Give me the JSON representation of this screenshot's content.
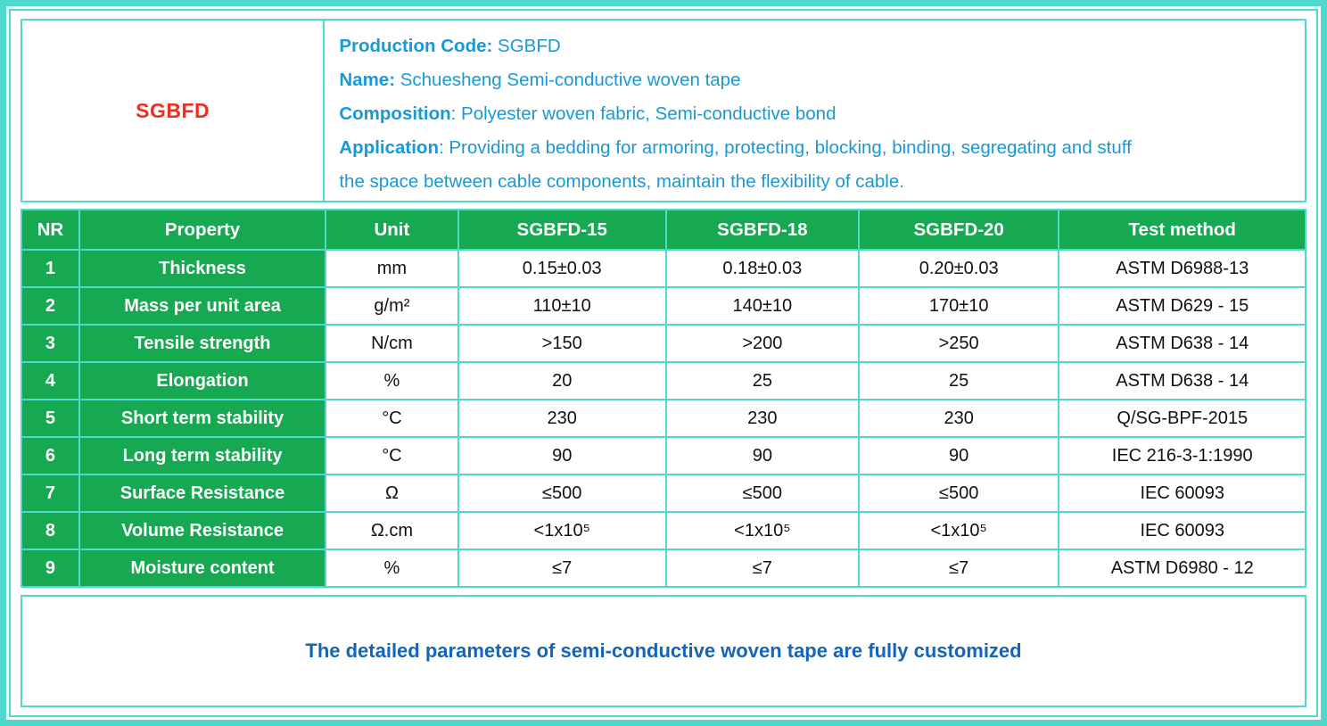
{
  "colors": {
    "frame_teal": "#4fd9ce",
    "header_green": "#16a952",
    "info_azure": "#1899d6",
    "footer_blue": "#1464b8",
    "code_red": "#ef2e1e"
  },
  "header": {
    "code": "SGBFD",
    "lines": [
      {
        "label": "Production Code:",
        "value": " SGBFD"
      },
      {
        "label": "Name:",
        "value": " Schuesheng Semi-conductive woven tape"
      },
      {
        "label": "Composition",
        "value": ": Polyester woven fabric, Semi-conductive bond"
      },
      {
        "label": "Application",
        "value": ": Providing a bedding for armoring, protecting, blocking, binding, segregating and stuff"
      },
      {
        "label": "",
        "value": "the space between cable components, maintain the flexibility of cable."
      }
    ]
  },
  "table": {
    "columns": [
      "NR",
      "Property",
      "Unit",
      "SGBFD-15",
      "SGBFD-18",
      "SGBFD-20",
      "Test method"
    ],
    "rows": [
      [
        "1",
        "Thickness",
        "mm",
        "0.15±0.03",
        "0.18±0.03",
        "0.20±0.03",
        "ASTM D6988-13"
      ],
      [
        "2",
        "Mass per unit area",
        "g/m²",
        "110±10",
        "140±10",
        "170±10",
        "ASTM D629 - 15"
      ],
      [
        "3",
        "Tensile strength",
        "N/cm",
        ">150",
        ">200",
        ">250",
        "ASTM D638 - 14"
      ],
      [
        "4",
        "Elongation",
        "%",
        "20",
        "25",
        "25",
        "ASTM D638 - 14"
      ],
      [
        "5",
        "Short term stability",
        "°C",
        "230",
        "230",
        "230",
        "Q/SG-BPF-2015"
      ],
      [
        "6",
        "Long term stability",
        "°C",
        "90",
        "90",
        "90",
        "IEC 216-3-1:1990"
      ],
      [
        "7",
        "Surface Resistance",
        "Ω",
        "≤500",
        "≤500",
        "≤500",
        "IEC 60093"
      ],
      [
        "8",
        "Volume Resistance",
        "Ω.cm",
        "<1x10⁵",
        "<1x10⁵",
        "<1x10⁵",
        "IEC 60093"
      ],
      [
        "9",
        "Moisture content",
        "%",
        "≤7",
        "≤7",
        "≤7",
        "ASTM D6980 - 12"
      ]
    ]
  },
  "footer": {
    "note": "The detailed parameters of semi-conductive woven tape are fully customized"
  }
}
